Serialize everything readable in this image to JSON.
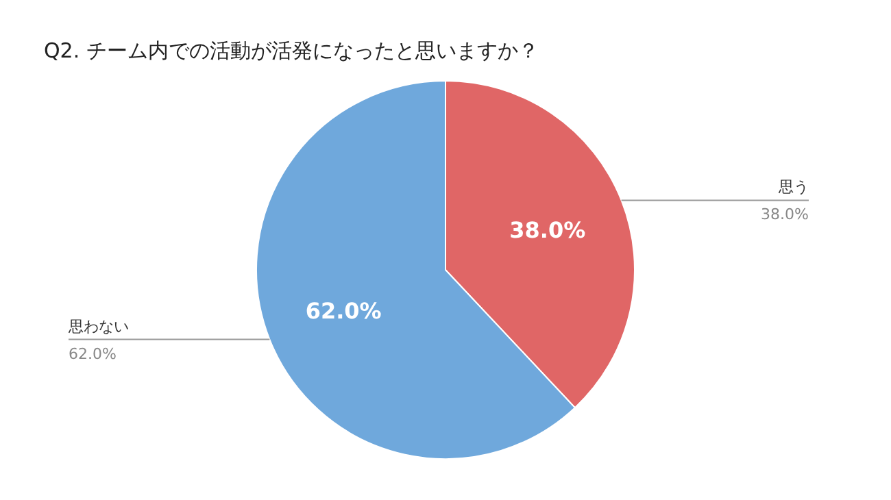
{
  "chart_data": {
    "type": "pie",
    "title": "Q2. チーム内での活動が活発になったと思いますか？",
    "categories": [
      "思う",
      "思わない"
    ],
    "values": [
      38,
      62
    ],
    "colors": [
      "#e06666",
      "#6fa8dc"
    ],
    "value_labels": [
      "38.0%",
      "62.0%"
    ]
  }
}
